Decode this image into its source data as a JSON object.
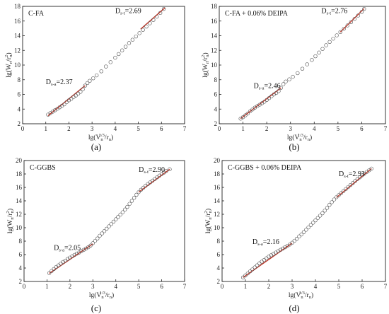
{
  "chart_data": [
    {
      "type": "scatter",
      "panel": "(a)",
      "title": "C-FA",
      "xlabel_main": "lg(V",
      "xlabel_sup": "1/3",
      "xlabel_sub": "n",
      "xlabel_mid": "/r",
      "xlabel_sub2": "n",
      "xlabel_end": ")",
      "ylabel_main": "lg(W",
      "ylabel_sub": "n",
      "ylabel_mid": "/r",
      "ylabel_sup": "2",
      "ylabel_sub2": "n",
      "ylabel_end": ")",
      "xlim": [
        0,
        7
      ],
      "ylim": [
        2,
        18
      ],
      "xticks": [
        0,
        1,
        2,
        3,
        4,
        5,
        6,
        7
      ],
      "yticks": [
        2,
        4,
        6,
        8,
        10,
        12,
        14,
        16,
        18
      ],
      "annotations": [
        {
          "prefix": "D",
          "sub": "s-a",
          "text": "=2.37",
          "x": 1.0,
          "y": 7.4
        },
        {
          "prefix": "D",
          "sub": "s-t",
          "text": "=2.69",
          "x": 4.0,
          "y": 17.1
        }
      ],
      "points": [
        [
          1.1,
          3.25
        ],
        [
          1.2,
          3.45
        ],
        [
          1.3,
          3.65
        ],
        [
          1.4,
          3.85
        ],
        [
          1.5,
          4.05
        ],
        [
          1.6,
          4.25
        ],
        [
          1.7,
          4.45
        ],
        [
          1.8,
          4.65
        ],
        [
          1.9,
          4.95
        ],
        [
          2.0,
          5.2
        ],
        [
          2.1,
          5.4
        ],
        [
          2.2,
          5.65
        ],
        [
          2.3,
          5.85
        ],
        [
          2.4,
          6.1
        ],
        [
          2.5,
          6.35
        ],
        [
          2.6,
          6.7
        ],
        [
          2.7,
          7.2
        ],
        [
          2.8,
          7.55
        ],
        [
          2.9,
          7.85
        ],
        [
          3.05,
          8.2
        ],
        [
          3.2,
          8.6
        ],
        [
          3.4,
          9.15
        ],
        [
          3.6,
          9.8
        ],
        [
          3.8,
          10.4
        ],
        [
          4.0,
          11.0
        ],
        [
          4.15,
          11.5
        ],
        [
          4.3,
          12.0
        ],
        [
          4.45,
          12.5
        ],
        [
          4.6,
          13.0
        ],
        [
          4.75,
          13.45
        ],
        [
          4.9,
          13.9
        ],
        [
          5.05,
          14.35
        ],
        [
          5.2,
          14.8
        ],
        [
          5.35,
          15.25
        ],
        [
          5.5,
          15.7
        ],
        [
          5.65,
          16.15
        ],
        [
          5.8,
          16.6
        ],
        [
          5.95,
          17.1
        ],
        [
          6.1,
          17.65
        ]
      ],
      "fits": [
        [
          [
            1.1,
            3.1
          ],
          [
            2.7,
            7.2
          ]
        ],
        [
          [
            5.1,
            14.9
          ],
          [
            6.15,
            17.8
          ]
        ]
      ]
    },
    {
      "type": "scatter",
      "panel": "(b)",
      "title": "C-FA + 0.06% DEIPA",
      "xlabel_main": "lg(V",
      "xlabel_sup": "1/3",
      "xlabel_sub": "n",
      "xlabel_mid": "/r",
      "xlabel_sub2": "n",
      "xlabel_end": ")",
      "ylabel_main": "lg(W",
      "ylabel_sub": "n",
      "ylabel_mid": "/r",
      "ylabel_sup": "2",
      "ylabel_sub2": "n",
      "ylabel_end": ")",
      "xlim": [
        0,
        7
      ],
      "ylim": [
        2,
        18
      ],
      "xticks": [
        0,
        1,
        2,
        3,
        4,
        5,
        6,
        7
      ],
      "yticks": [
        2,
        4,
        6,
        8,
        10,
        12,
        14,
        16,
        18
      ],
      "annotations": [
        {
          "prefix": "D",
          "sub": "s-a",
          "text": "=2.46",
          "x": 1.45,
          "y": 6.85
        },
        {
          "prefix": "D",
          "sub": "s-t",
          "text": "=2.76",
          "x": 4.3,
          "y": 17.1
        }
      ],
      "points": [
        [
          0.9,
          2.7
        ],
        [
          1.0,
          2.9
        ],
        [
          1.1,
          3.15
        ],
        [
          1.2,
          3.4
        ],
        [
          1.3,
          3.7
        ],
        [
          1.4,
          3.95
        ],
        [
          1.5,
          4.2
        ],
        [
          1.6,
          4.4
        ],
        [
          1.7,
          4.6
        ],
        [
          1.8,
          4.8
        ],
        [
          1.9,
          5.0
        ],
        [
          2.0,
          5.25
        ],
        [
          2.1,
          5.5
        ],
        [
          2.2,
          5.75
        ],
        [
          2.3,
          6.0
        ],
        [
          2.4,
          6.2
        ],
        [
          2.5,
          6.45
        ],
        [
          2.6,
          6.9
        ],
        [
          2.7,
          7.4
        ],
        [
          2.8,
          7.75
        ],
        [
          2.95,
          8.05
        ],
        [
          3.1,
          8.4
        ],
        [
          3.3,
          8.9
        ],
        [
          3.5,
          9.5
        ],
        [
          3.7,
          10.1
        ],
        [
          3.9,
          10.7
        ],
        [
          4.05,
          11.2
        ],
        [
          4.2,
          11.7
        ],
        [
          4.35,
          12.2
        ],
        [
          4.5,
          12.7
        ],
        [
          4.65,
          13.15
        ],
        [
          4.8,
          13.6
        ],
        [
          4.95,
          14.05
        ],
        [
          5.1,
          14.5
        ],
        [
          5.25,
          14.95
        ],
        [
          5.4,
          15.4
        ],
        [
          5.55,
          15.85
        ],
        [
          5.7,
          16.3
        ],
        [
          5.85,
          16.75
        ],
        [
          6.0,
          17.25
        ],
        [
          6.1,
          17.65
        ]
      ],
      "fits": [
        [
          [
            0.9,
            2.7
          ],
          [
            2.6,
            6.9
          ]
        ],
        [
          [
            5.1,
            14.5
          ],
          [
            6.1,
            17.7
          ]
        ]
      ]
    },
    {
      "type": "scatter",
      "panel": "(c)",
      "title": "C-GGBS",
      "xlabel_main": "lg(V",
      "xlabel_sup": "1/3",
      "xlabel_sub": "n",
      "xlabel_mid": "/r",
      "xlabel_sub2": "n",
      "xlabel_end": ")",
      "ylabel_main": "lg(W",
      "ylabel_sub": "n",
      "ylabel_mid": "/r",
      "ylabel_sup": "2",
      "ylabel_sub2": "n",
      "ylabel_end": ")",
      "xlim": [
        0,
        7
      ],
      "ylim": [
        2,
        20
      ],
      "xticks": [
        0,
        1,
        2,
        3,
        4,
        5,
        6,
        7
      ],
      "yticks": [
        2,
        4,
        6,
        8,
        10,
        12,
        14,
        16,
        18,
        20
      ],
      "annotations": [
        {
          "prefix": "D",
          "sub": "s-a",
          "text": "=2.05",
          "x": 1.3,
          "y": 6.7
        },
        {
          "prefix": "D",
          "sub": "s-t",
          "text": "=2.90",
          "x": 5.0,
          "y": 18.3
        }
      ],
      "points": [
        [
          1.1,
          3.25
        ],
        [
          1.2,
          3.55
        ],
        [
          1.3,
          3.85
        ],
        [
          1.4,
          4.15
        ],
        [
          1.5,
          4.4
        ],
        [
          1.6,
          4.65
        ],
        [
          1.7,
          4.9
        ],
        [
          1.8,
          5.1
        ],
        [
          1.9,
          5.35
        ],
        [
          2.0,
          5.55
        ],
        [
          2.1,
          5.75
        ],
        [
          2.2,
          5.95
        ],
        [
          2.3,
          6.15
        ],
        [
          2.4,
          6.3
        ],
        [
          2.5,
          6.5
        ],
        [
          2.6,
          6.7
        ],
        [
          2.7,
          6.9
        ],
        [
          2.8,
          7.1
        ],
        [
          2.9,
          7.35
        ],
        [
          3.0,
          7.7
        ],
        [
          3.1,
          8.05
        ],
        [
          3.2,
          8.4
        ],
        [
          3.3,
          8.8
        ],
        [
          3.4,
          9.15
        ],
        [
          3.5,
          9.5
        ],
        [
          3.6,
          9.85
        ],
        [
          3.7,
          10.2
        ],
        [
          3.8,
          10.55
        ],
        [
          3.9,
          10.9
        ],
        [
          4.0,
          11.25
        ],
        [
          4.1,
          11.6
        ],
        [
          4.2,
          11.95
        ],
        [
          4.3,
          12.3
        ],
        [
          4.4,
          12.7
        ],
        [
          4.5,
          13.1
        ],
        [
          4.6,
          13.55
        ],
        [
          4.7,
          14.0
        ],
        [
          4.8,
          14.45
        ],
        [
          4.9,
          14.9
        ],
        [
          5.0,
          15.3
        ],
        [
          5.1,
          15.65
        ],
        [
          5.2,
          15.95
        ],
        [
          5.3,
          16.25
        ],
        [
          5.4,
          16.5
        ],
        [
          5.5,
          16.75
        ],
        [
          5.6,
          17.0
        ],
        [
          5.7,
          17.25
        ],
        [
          5.8,
          17.5
        ],
        [
          5.9,
          17.75
        ],
        [
          6.0,
          18.0
        ],
        [
          6.1,
          18.2
        ],
        [
          6.2,
          18.45
        ],
        [
          6.35,
          18.7
        ]
      ],
      "fits": [
        [
          [
            1.1,
            3.2
          ],
          [
            3.0,
            7.6
          ]
        ],
        [
          [
            5.0,
            15.3
          ],
          [
            6.35,
            18.7
          ]
        ]
      ]
    },
    {
      "type": "scatter",
      "panel": "(d)",
      "title": "C-GGBS + 0.06% DEIPA",
      "xlabel_main": "lg(V",
      "xlabel_sup": "1/3",
      "xlabel_sub": "n",
      "xlabel_mid": "/r",
      "xlabel_sub2": "n",
      "xlabel_end": ")",
      "ylabel_main": "lg(W",
      "ylabel_sub": "n",
      "ylabel_mid": "/r",
      "ylabel_sup": "2",
      "ylabel_sub2": "n",
      "ylabel_end": ")",
      "xlim": [
        0,
        7
      ],
      "ylim": [
        2,
        20
      ],
      "xticks": [
        0,
        1,
        2,
        3,
        4,
        5,
        6,
        7
      ],
      "yticks": [
        2,
        4,
        6,
        8,
        10,
        12,
        14,
        16,
        18,
        20
      ],
      "annotations": [
        {
          "prefix": "D",
          "sub": "s-a",
          "text": "=2.16",
          "x": 1.3,
          "y": 7.6
        },
        {
          "prefix": "D",
          "sub": "s-t",
          "text": "=2.93",
          "x": 5.0,
          "y": 17.7
        }
      ],
      "points": [
        [
          0.9,
          2.6
        ],
        [
          1.0,
          2.9
        ],
        [
          1.1,
          3.2
        ],
        [
          1.2,
          3.5
        ],
        [
          1.3,
          3.8
        ],
        [
          1.4,
          4.1
        ],
        [
          1.5,
          4.4
        ],
        [
          1.6,
          4.7
        ],
        [
          1.7,
          4.95
        ],
        [
          1.8,
          5.2
        ],
        [
          1.9,
          5.45
        ],
        [
          2.0,
          5.7
        ],
        [
          2.1,
          5.9
        ],
        [
          2.2,
          6.1
        ],
        [
          2.3,
          6.3
        ],
        [
          2.4,
          6.5
        ],
        [
          2.5,
          6.7
        ],
        [
          2.6,
          6.9
        ],
        [
          2.7,
          7.1
        ],
        [
          2.8,
          7.3
        ],
        [
          2.9,
          7.5
        ],
        [
          3.0,
          7.75
        ],
        [
          3.1,
          8.05
        ],
        [
          3.2,
          8.35
        ],
        [
          3.3,
          8.7
        ],
        [
          3.4,
          9.0
        ],
        [
          3.5,
          9.35
        ],
        [
          3.6,
          9.7
        ],
        [
          3.7,
          10.05
        ],
        [
          3.8,
          10.4
        ],
        [
          3.9,
          10.75
        ],
        [
          4.0,
          11.1
        ],
        [
          4.1,
          11.45
        ],
        [
          4.2,
          11.8
        ],
        [
          4.3,
          12.15
        ],
        [
          4.4,
          12.55
        ],
        [
          4.5,
          12.95
        ],
        [
          4.6,
          13.4
        ],
        [
          4.7,
          13.8
        ],
        [
          4.8,
          14.2
        ],
        [
          4.9,
          14.55
        ],
        [
          5.0,
          14.85
        ],
        [
          5.1,
          15.15
        ],
        [
          5.2,
          15.45
        ],
        [
          5.3,
          15.75
        ],
        [
          5.4,
          16.05
        ],
        [
          5.5,
          16.35
        ],
        [
          5.6,
          16.65
        ],
        [
          5.7,
          16.95
        ],
        [
          5.8,
          17.25
        ],
        [
          5.9,
          17.5
        ],
        [
          6.0,
          17.8
        ],
        [
          6.1,
          18.05
        ],
        [
          6.2,
          18.3
        ],
        [
          6.3,
          18.55
        ],
        [
          6.4,
          18.8
        ]
      ],
      "fits": [
        [
          [
            0.9,
            2.6
          ],
          [
            3.0,
            7.7
          ]
        ],
        [
          [
            4.9,
            14.5
          ],
          [
            6.4,
            18.8
          ]
        ]
      ]
    }
  ],
  "colors": {
    "marker_stroke": "#555555",
    "fit_line": "#c0392b",
    "axis": "#222222"
  }
}
